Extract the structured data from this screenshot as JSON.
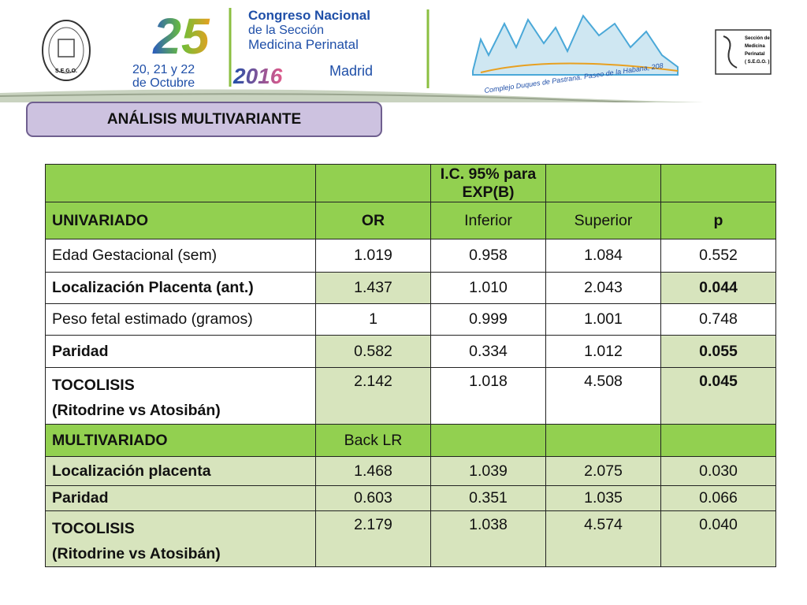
{
  "header": {
    "logo_left": "S.E.G.O.",
    "number": "25",
    "event_line1": "Congreso Nacional",
    "event_line2": "de la Sección",
    "event_line3": "Medicina Perinatal",
    "dates_line1": "20, 21 y 22",
    "dates_line2": "de Octubre",
    "year": "2016",
    "city": "Madrid",
    "venue": "Complejo Duques de Pastrana. Paseo de la Habana, 208",
    "logo_right": [
      "Sección de",
      "Medicina",
      "Perinatal",
      "( S.E.G.O. )"
    ]
  },
  "title": "ANÁLISIS MULTIVARIANTE",
  "table": {
    "rows": [
      [
        "",
        "",
        "I.C. 95% para EXP(B)",
        "",
        ""
      ],
      [
        "UNIVARIADO",
        "OR",
        "Inferior",
        "Superior",
        "p"
      ],
      [
        "Edad Gestacional (sem)",
        "1.019",
        "0.958",
        "1.084",
        "0.552"
      ],
      [
        "Localización Placenta (ant.)",
        "1.437",
        "1.010",
        "2.043",
        "0.044"
      ],
      [
        "Peso fetal estimado (gramos)",
        "1",
        "0.999",
        "1.001",
        "0.748"
      ],
      [
        "Paridad",
        "0.582",
        "0.334",
        "1.012",
        "0.055"
      ],
      [
        [
          "TOCOLISIS",
          "(Ritodrine vs Atosibán)"
        ],
        "2.142",
        "1.018",
        "4.508",
        "0.045"
      ],
      [
        "MULTIVARIADO",
        "Back LR",
        "",
        "",
        ""
      ],
      [
        "Localización placenta",
        "1.468",
        "1.039",
        "2.075",
        "0.030"
      ],
      [
        "Paridad",
        "0.603",
        "0.351",
        "1.035",
        "0.066"
      ],
      [
        [
          "TOCOLISIS",
          "(Ritodrine vs Atosibán)"
        ],
        "2.179",
        "1.038",
        "4.574",
        "0.040"
      ]
    ]
  }
}
